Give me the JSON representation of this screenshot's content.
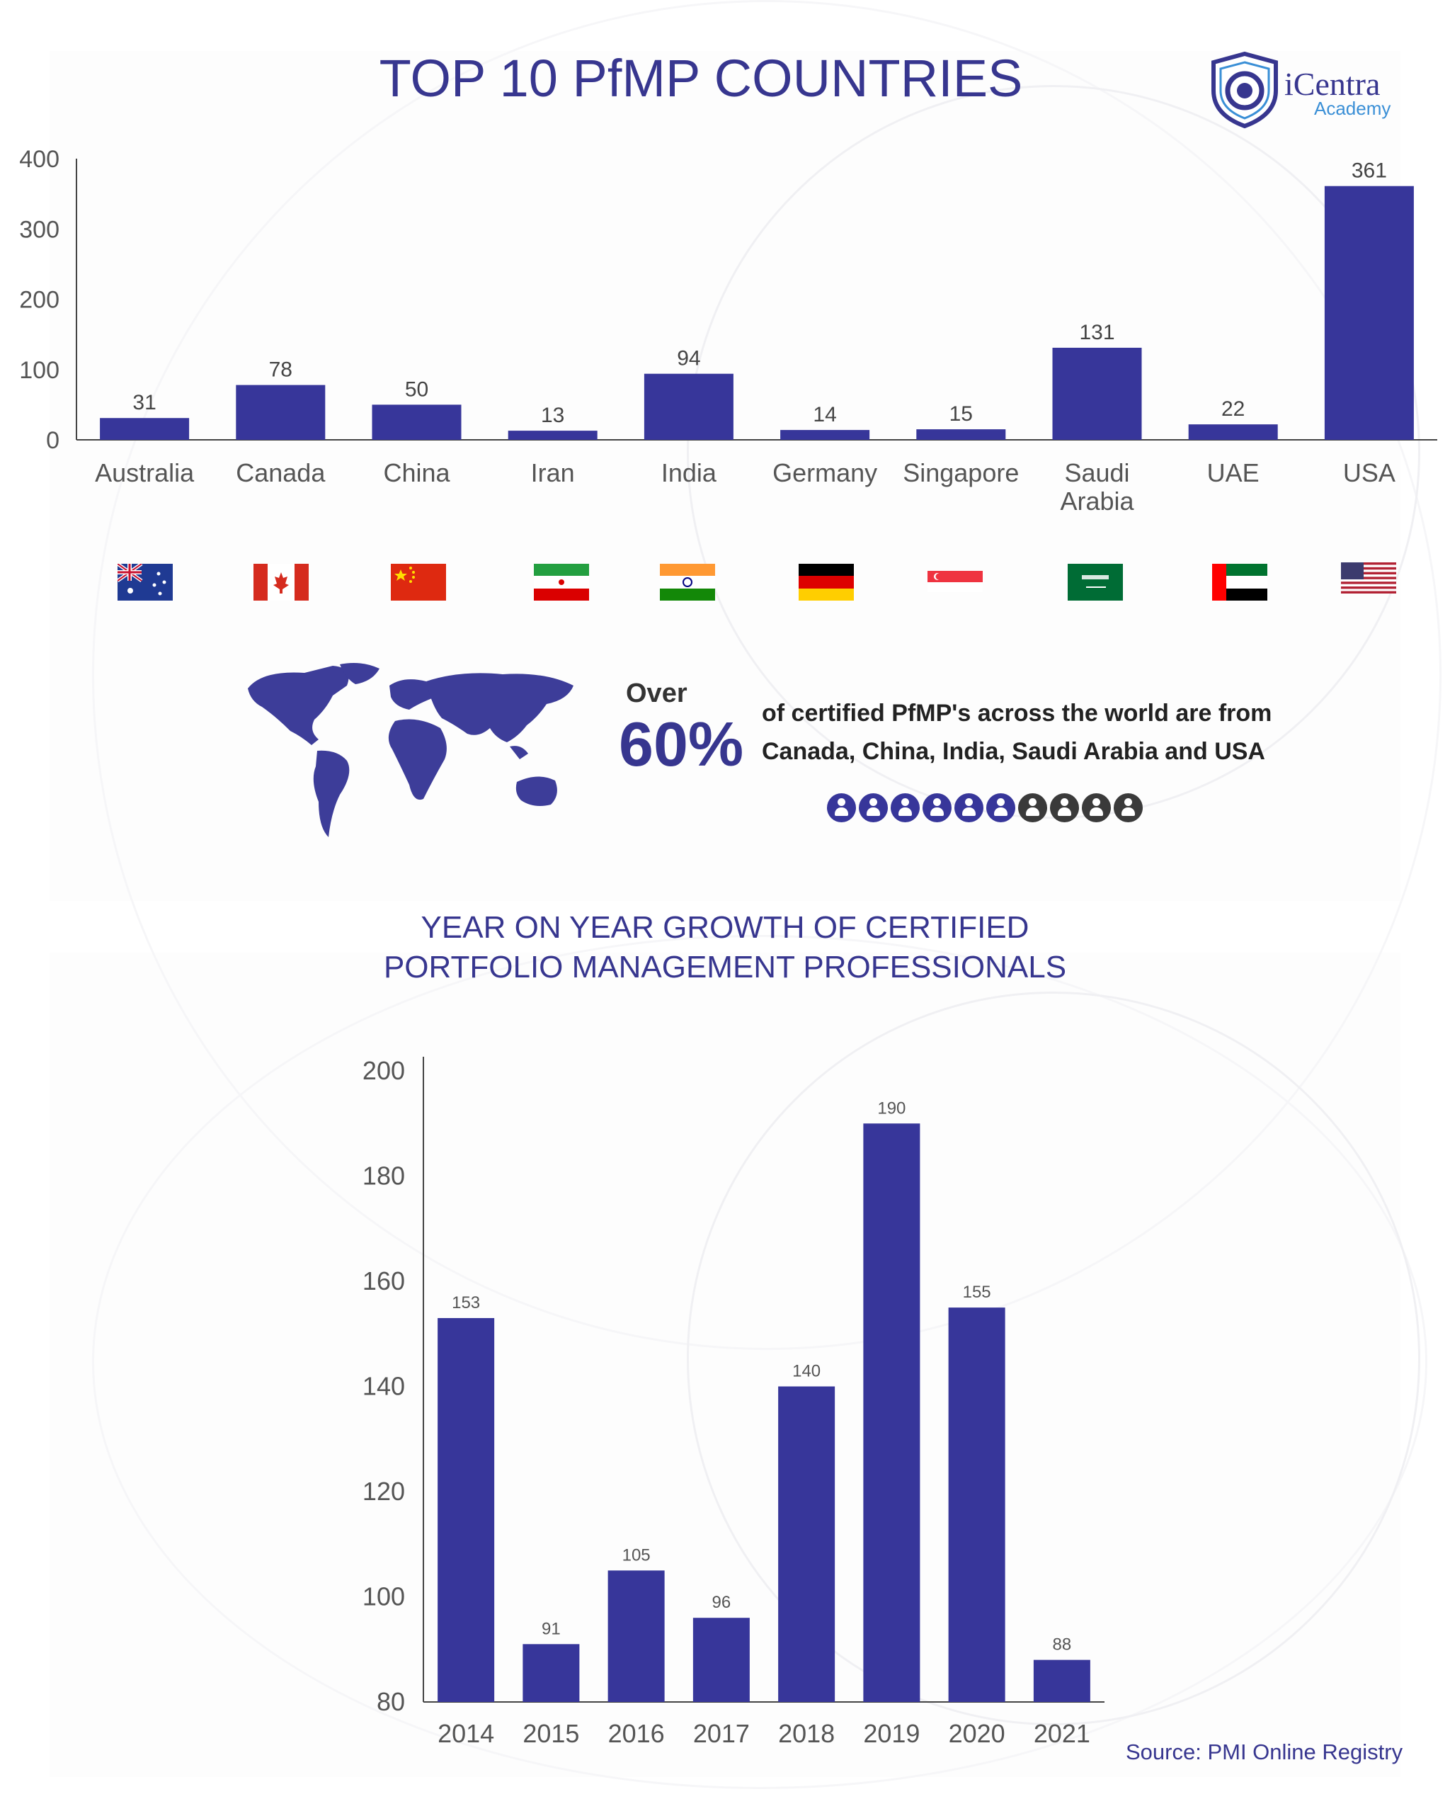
{
  "title": "TOP 10 PfMP COUNTRIES",
  "logo": {
    "name": "iCentra",
    "sub": "Academy"
  },
  "stat": {
    "over": "Over",
    "percent": "60%",
    "line1": "of certified PfMP's across the world are from",
    "line2": "Canada, China, India, Saudi Arabia and USA",
    "filled_icons": 6,
    "total_icons": 10
  },
  "title2": {
    "line1": "YEAR ON YEAR GROWTH OF CERTIFIED",
    "line2": "PORTFOLIO MANAGEMENT PROFESSIONALS"
  },
  "source": "Source: PMI Online Registry",
  "colors": {
    "bar": "#37369a",
    "accent": "#37368f",
    "icon_filled": "#37369a",
    "icon_empty": "#3a3a3a"
  },
  "chart_data": [
    {
      "type": "bar",
      "title": "TOP 10 PfMP COUNTRIES",
      "categories": [
        "Australia",
        "Canada",
        "China",
        "Iran",
        "India",
        "Germany",
        "Singapore",
        "Saudi Arabia",
        "UAE",
        "USA"
      ],
      "category_label_lines": [
        [
          "Australia"
        ],
        [
          "Canada"
        ],
        [
          "China"
        ],
        [
          "Iran"
        ],
        [
          "India"
        ],
        [
          "Germany"
        ],
        [
          "Singapore"
        ],
        [
          "Saudi",
          "Arabia"
        ],
        [
          "UAE"
        ],
        [
          "USA"
        ]
      ],
      "values": [
        31,
        78,
        50,
        13,
        94,
        14,
        15,
        131,
        22,
        361
      ],
      "yticks": [
        "0",
        "100",
        "200",
        "300",
        "400"
      ],
      "ylim": [
        0,
        400
      ],
      "flags": [
        "australia-flag",
        "canada-flag",
        "china-flag",
        "iran-flag",
        "india-flag",
        "germany-flag",
        "singapore-flag",
        "saudi-arabia-flag",
        "uae-flag",
        "usa-flag"
      ],
      "grid": false
    },
    {
      "type": "bar",
      "title": "YEAR ON YEAR GROWTH OF CERTIFIED PORTFOLIO MANAGEMENT PROFESSIONALS",
      "categories": [
        "2014",
        "2015",
        "2016",
        "2017",
        "2018",
        "2019",
        "2020",
        "2021"
      ],
      "values": [
        153,
        91,
        105,
        96,
        140,
        190,
        155,
        88
      ],
      "yticks": [
        "80",
        "100",
        "120",
        "140",
        "160",
        "180",
        "200"
      ],
      "ylim": [
        80,
        200
      ],
      "grid": false
    }
  ]
}
